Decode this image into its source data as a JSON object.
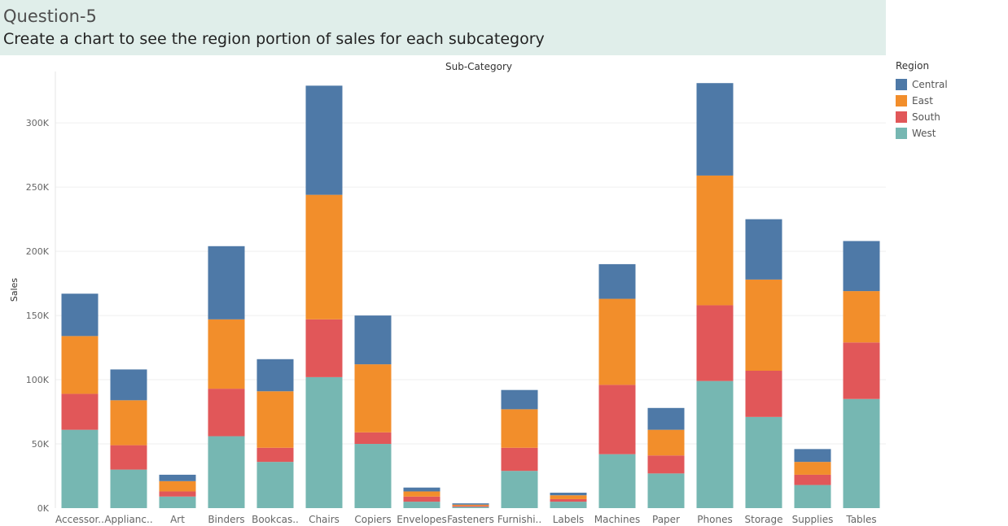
{
  "header": {
    "question": "Question-5",
    "prompt": "Create a chart to see the region portion of sales  for each subcategory"
  },
  "legend": {
    "title": "Region",
    "items": [
      {
        "name": "Central",
        "color": "#4e79a7"
      },
      {
        "name": "East",
        "color": "#f28e2b"
      },
      {
        "name": "South",
        "color": "#e15759"
      },
      {
        "name": "West",
        "color": "#76b7b2"
      }
    ]
  },
  "chart_data": {
    "type": "bar",
    "stacked": true,
    "title": "Sub-Category",
    "xlabel": "",
    "ylabel": "Sales",
    "ylim": [
      0,
      340000
    ],
    "yticks": [
      0,
      50000,
      100000,
      150000,
      200000,
      250000,
      300000
    ],
    "ytick_labels": [
      "0K",
      "50K",
      "100K",
      "150K",
      "200K",
      "250K",
      "300K"
    ],
    "categories": [
      "Accessories",
      "Appliances",
      "Art",
      "Binders",
      "Bookcases",
      "Chairs",
      "Copiers",
      "Envelopes",
      "Fasteners",
      "Furnishings",
      "Labels",
      "Machines",
      "Paper",
      "Phones",
      "Storage",
      "Supplies",
      "Tables"
    ],
    "category_labels": [
      "Accessor..",
      "Applianc..",
      "Art",
      "Binders",
      "Bookcas..",
      "Chairs",
      "Copiers",
      "Envelopes",
      "Fasteners",
      "Furnishi..",
      "Labels",
      "Machines",
      "Paper",
      "Phones",
      "Storage",
      "Supplies",
      "Tables"
    ],
    "series": [
      {
        "name": "West",
        "color": "#76b7b2",
        "values": [
          61000,
          30000,
          9000,
          56000,
          36000,
          102000,
          50000,
          5000,
          1000,
          29000,
          5000,
          42000,
          27000,
          99000,
          71000,
          18000,
          85000
        ]
      },
      {
        "name": "South",
        "color": "#e15759",
        "values": [
          28000,
          19000,
          4000,
          37000,
          11000,
          45000,
          9000,
          4000,
          800,
          18000,
          2000,
          54000,
          14000,
          59000,
          36000,
          8000,
          44000
        ]
      },
      {
        "name": "East",
        "color": "#f28e2b",
        "values": [
          45000,
          35000,
          8000,
          54000,
          44000,
          97000,
          53000,
          4000,
          900,
          30000,
          3000,
          67000,
          20000,
          101000,
          71000,
          10000,
          40000
        ]
      },
      {
        "name": "Central",
        "color": "#4e79a7",
        "values": [
          33000,
          24000,
          5000,
          57000,
          25000,
          85000,
          38000,
          3000,
          1000,
          15000,
          2000,
          27000,
          17000,
          72000,
          47000,
          10000,
          39000
        ]
      }
    ]
  }
}
